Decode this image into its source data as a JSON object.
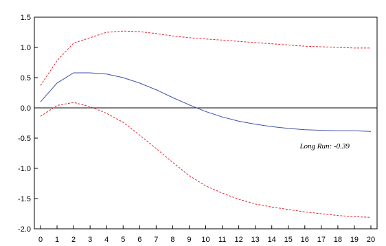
{
  "chart_data": {
    "type": "line",
    "title": "",
    "xlabel": "",
    "ylabel": "",
    "x": [
      0,
      1,
      2,
      3,
      4,
      5,
      6,
      7,
      8,
      9,
      10,
      11,
      12,
      13,
      14,
      15,
      16,
      17,
      18,
      19,
      20
    ],
    "xlim": [
      0,
      20
    ],
    "ylim": [
      -2.0,
      1.5
    ],
    "x_ticks": [
      "0",
      "1",
      "2",
      "3",
      "4",
      "5",
      "6",
      "7",
      "8",
      "9",
      "10",
      "11",
      "12",
      "13",
      "14",
      "15",
      "16",
      "17",
      "18",
      "19",
      "20"
    ],
    "y_ticks": [
      "1.5",
      "1.0",
      "0.5",
      "0.0",
      "-0.5",
      "-1.0",
      "-1.5",
      "-2.0"
    ],
    "y_tick_values": [
      1.5,
      1.0,
      0.5,
      0.0,
      -0.5,
      -1.0,
      -1.5,
      -2.0
    ],
    "grid": false,
    "zero_line": true,
    "series": [
      {
        "role": "upper-band",
        "style": "dashed",
        "color": "#e8202a",
        "values": [
          0.37,
          0.78,
          1.07,
          1.16,
          1.25,
          1.27,
          1.26,
          1.23,
          1.19,
          1.16,
          1.14,
          1.12,
          1.1,
          1.08,
          1.06,
          1.04,
          1.02,
          1.01,
          1.0,
          0.99,
          0.99
        ]
      },
      {
        "role": "estimate",
        "style": "solid",
        "color": "#3a4fa8",
        "values": [
          0.1,
          0.41,
          0.58,
          0.58,
          0.56,
          0.5,
          0.41,
          0.3,
          0.17,
          0.05,
          -0.06,
          -0.15,
          -0.22,
          -0.27,
          -0.31,
          -0.34,
          -0.36,
          -0.37,
          -0.38,
          -0.38,
          -0.39
        ]
      },
      {
        "role": "lower-band",
        "style": "dashed",
        "color": "#e8202a",
        "values": [
          -0.14,
          0.04,
          0.09,
          0.02,
          -0.09,
          -0.24,
          -0.45,
          -0.67,
          -0.9,
          -1.12,
          -1.29,
          -1.41,
          -1.51,
          -1.59,
          -1.64,
          -1.68,
          -1.72,
          -1.75,
          -1.78,
          -1.8,
          -1.81
        ]
      }
    ],
    "annotation": {
      "text": "Long Run: -0.39",
      "x": 17.2,
      "y": -0.67
    },
    "colors": {
      "axis": "#000000",
      "zero_line": "#000000"
    }
  }
}
